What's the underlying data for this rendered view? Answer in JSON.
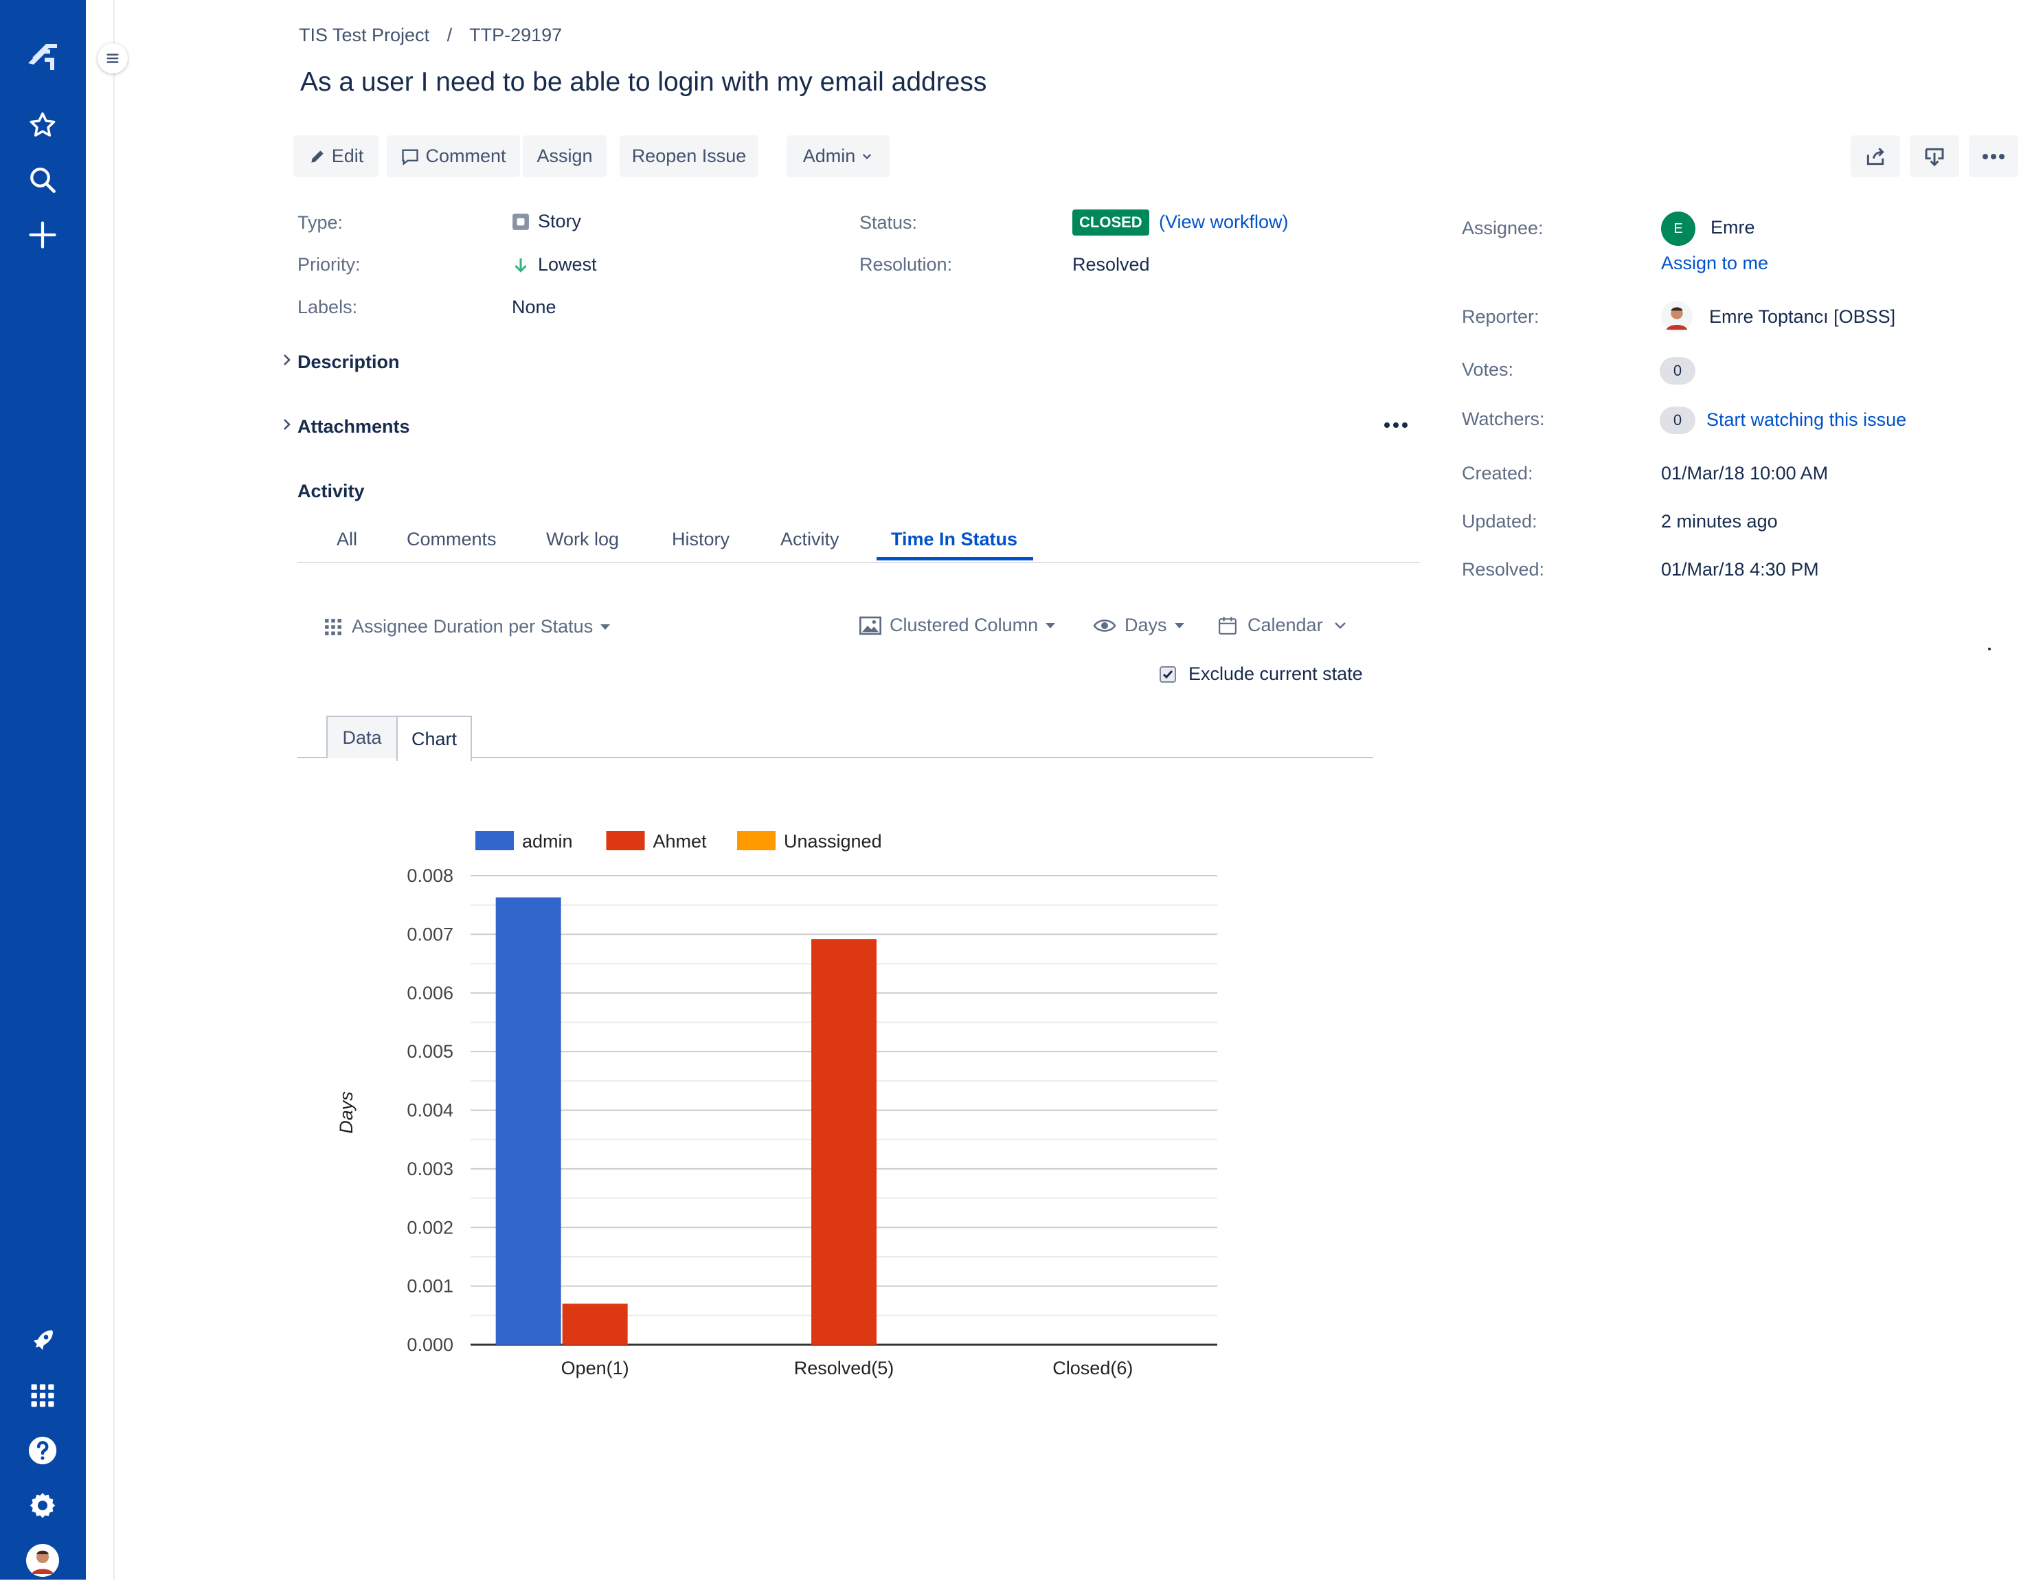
{
  "nav": {
    "icons": [
      "jira-logo-icon",
      "star-icon",
      "search-icon",
      "create-icon",
      "rocket-icon",
      "app-switcher-icon",
      "help-icon",
      "settings-icon",
      "avatar"
    ]
  },
  "breadcrumb": {
    "project": "TIS Test Project",
    "separator": "/",
    "issue_key": "TTP-29197"
  },
  "issue": {
    "title": "As a user I need to be able to login with my email address"
  },
  "toolbar": {
    "edit": "Edit",
    "comment": "Comment",
    "assign": "Assign",
    "reopen": "Reopen Issue",
    "admin": "Admin"
  },
  "details": {
    "type_label": "Type:",
    "type_value": "Story",
    "priority_label": "Priority:",
    "priority_value": "Lowest",
    "labels_label": "Labels:",
    "labels_value": "None",
    "status_label": "Status:",
    "status_value": "CLOSED",
    "view_workflow": "(View workflow)",
    "resolution_label": "Resolution:",
    "resolution_value": "Resolved"
  },
  "people": {
    "assignee_label": "Assignee:",
    "assignee_initial": "E",
    "assignee_name": "Emre",
    "assign_to_me": "Assign to me",
    "reporter_label": "Reporter:",
    "reporter_name": "Emre Toptancı [OBSS]",
    "votes_label": "Votes:",
    "votes_count": "0",
    "watchers_label": "Watchers:",
    "watchers_count": "0",
    "watch_link": "Start watching this issue"
  },
  "dates": {
    "created_label": "Created:",
    "created_value": "01/Mar/18 10:00 AM",
    "updated_label": "Updated:",
    "updated_value": "2 minutes ago",
    "resolved_label": "Resolved:",
    "resolved_value": "01/Mar/18 4:30 PM"
  },
  "sections": {
    "description": "Description",
    "attachments": "Attachments",
    "activity": "Activity"
  },
  "activity_tabs": [
    "All",
    "Comments",
    "Work log",
    "History",
    "Activity",
    "Time In Status"
  ],
  "report_controls": {
    "report": "Assignee Duration per Status",
    "chart_type": "Clustered Column",
    "unit": "Days",
    "calendar": "Calendar",
    "exclude_label": "Exclude current state",
    "exclude_checked": true
  },
  "view_tabs": {
    "data": "Data",
    "chart": "Chart"
  },
  "colors": {
    "nav_bg": "#0747a6",
    "admin": "#3366cc",
    "ahmet": "#dc3912",
    "unassigned": "#ff9900",
    "closed_badge": "#00875a",
    "link": "#0052cc"
  },
  "chart_data": {
    "type": "bar",
    "categories": [
      "Open(1)",
      "Resolved(5)",
      "Closed(6)"
    ],
    "series": [
      {
        "name": "admin",
        "values": [
          0.00763,
          0,
          0
        ]
      },
      {
        "name": "Ahmet",
        "values": [
          0.0007,
          0.00692,
          0
        ]
      },
      {
        "name": "Unassigned",
        "values": [
          0,
          0,
          0
        ]
      }
    ],
    "ylabel": "Days",
    "ylim": [
      0,
      0.008
    ],
    "yticks": [
      "0.000",
      "0.001",
      "0.002",
      "0.003",
      "0.004",
      "0.005",
      "0.006",
      "0.007",
      "0.008"
    ],
    "legend": "top",
    "grid": true
  }
}
